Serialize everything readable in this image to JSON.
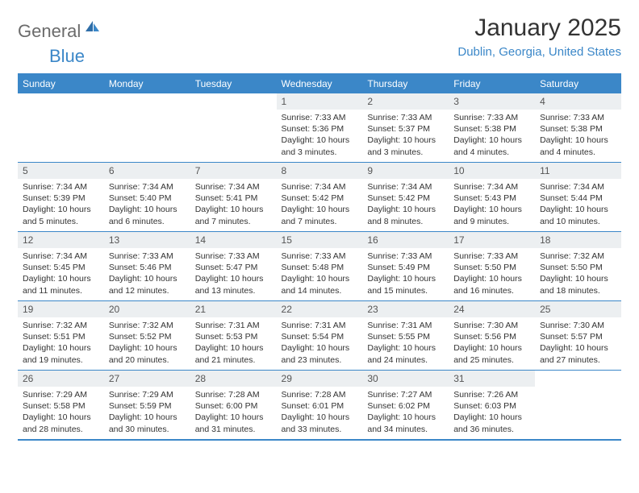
{
  "logo": {
    "text_gray": "General",
    "text_blue": "Blue"
  },
  "title": "January 2025",
  "location": "Dublin, Georgia, United States",
  "colors": {
    "brand_blue": "#3b87c8",
    "header_gray": "#6b6b6b",
    "cell_head_bg": "#eceff1",
    "text": "#333333",
    "bg": "#ffffff"
  },
  "day_headers": [
    "Sunday",
    "Monday",
    "Tuesday",
    "Wednesday",
    "Thursday",
    "Friday",
    "Saturday"
  ],
  "weeks": [
    [
      {
        "n": "",
        "sr": "",
        "ss": "",
        "dl": ""
      },
      {
        "n": "",
        "sr": "",
        "ss": "",
        "dl": ""
      },
      {
        "n": "",
        "sr": "",
        "ss": "",
        "dl": ""
      },
      {
        "n": "1",
        "sr": "Sunrise: 7:33 AM",
        "ss": "Sunset: 5:36 PM",
        "dl": "Daylight: 10 hours and 3 minutes."
      },
      {
        "n": "2",
        "sr": "Sunrise: 7:33 AM",
        "ss": "Sunset: 5:37 PM",
        "dl": "Daylight: 10 hours and 3 minutes."
      },
      {
        "n": "3",
        "sr": "Sunrise: 7:33 AM",
        "ss": "Sunset: 5:38 PM",
        "dl": "Daylight: 10 hours and 4 minutes."
      },
      {
        "n": "4",
        "sr": "Sunrise: 7:33 AM",
        "ss": "Sunset: 5:38 PM",
        "dl": "Daylight: 10 hours and 4 minutes."
      }
    ],
    [
      {
        "n": "5",
        "sr": "Sunrise: 7:34 AM",
        "ss": "Sunset: 5:39 PM",
        "dl": "Daylight: 10 hours and 5 minutes."
      },
      {
        "n": "6",
        "sr": "Sunrise: 7:34 AM",
        "ss": "Sunset: 5:40 PM",
        "dl": "Daylight: 10 hours and 6 minutes."
      },
      {
        "n": "7",
        "sr": "Sunrise: 7:34 AM",
        "ss": "Sunset: 5:41 PM",
        "dl": "Daylight: 10 hours and 7 minutes."
      },
      {
        "n": "8",
        "sr": "Sunrise: 7:34 AM",
        "ss": "Sunset: 5:42 PM",
        "dl": "Daylight: 10 hours and 7 minutes."
      },
      {
        "n": "9",
        "sr": "Sunrise: 7:34 AM",
        "ss": "Sunset: 5:42 PM",
        "dl": "Daylight: 10 hours and 8 minutes."
      },
      {
        "n": "10",
        "sr": "Sunrise: 7:34 AM",
        "ss": "Sunset: 5:43 PM",
        "dl": "Daylight: 10 hours and 9 minutes."
      },
      {
        "n": "11",
        "sr": "Sunrise: 7:34 AM",
        "ss": "Sunset: 5:44 PM",
        "dl": "Daylight: 10 hours and 10 minutes."
      }
    ],
    [
      {
        "n": "12",
        "sr": "Sunrise: 7:34 AM",
        "ss": "Sunset: 5:45 PM",
        "dl": "Daylight: 10 hours and 11 minutes."
      },
      {
        "n": "13",
        "sr": "Sunrise: 7:33 AM",
        "ss": "Sunset: 5:46 PM",
        "dl": "Daylight: 10 hours and 12 minutes."
      },
      {
        "n": "14",
        "sr": "Sunrise: 7:33 AM",
        "ss": "Sunset: 5:47 PM",
        "dl": "Daylight: 10 hours and 13 minutes."
      },
      {
        "n": "15",
        "sr": "Sunrise: 7:33 AM",
        "ss": "Sunset: 5:48 PM",
        "dl": "Daylight: 10 hours and 14 minutes."
      },
      {
        "n": "16",
        "sr": "Sunrise: 7:33 AM",
        "ss": "Sunset: 5:49 PM",
        "dl": "Daylight: 10 hours and 15 minutes."
      },
      {
        "n": "17",
        "sr": "Sunrise: 7:33 AM",
        "ss": "Sunset: 5:50 PM",
        "dl": "Daylight: 10 hours and 16 minutes."
      },
      {
        "n": "18",
        "sr": "Sunrise: 7:32 AM",
        "ss": "Sunset: 5:50 PM",
        "dl": "Daylight: 10 hours and 18 minutes."
      }
    ],
    [
      {
        "n": "19",
        "sr": "Sunrise: 7:32 AM",
        "ss": "Sunset: 5:51 PM",
        "dl": "Daylight: 10 hours and 19 minutes."
      },
      {
        "n": "20",
        "sr": "Sunrise: 7:32 AM",
        "ss": "Sunset: 5:52 PM",
        "dl": "Daylight: 10 hours and 20 minutes."
      },
      {
        "n": "21",
        "sr": "Sunrise: 7:31 AM",
        "ss": "Sunset: 5:53 PM",
        "dl": "Daylight: 10 hours and 21 minutes."
      },
      {
        "n": "22",
        "sr": "Sunrise: 7:31 AM",
        "ss": "Sunset: 5:54 PM",
        "dl": "Daylight: 10 hours and 23 minutes."
      },
      {
        "n": "23",
        "sr": "Sunrise: 7:31 AM",
        "ss": "Sunset: 5:55 PM",
        "dl": "Daylight: 10 hours and 24 minutes."
      },
      {
        "n": "24",
        "sr": "Sunrise: 7:30 AM",
        "ss": "Sunset: 5:56 PM",
        "dl": "Daylight: 10 hours and 25 minutes."
      },
      {
        "n": "25",
        "sr": "Sunrise: 7:30 AM",
        "ss": "Sunset: 5:57 PM",
        "dl": "Daylight: 10 hours and 27 minutes."
      }
    ],
    [
      {
        "n": "26",
        "sr": "Sunrise: 7:29 AM",
        "ss": "Sunset: 5:58 PM",
        "dl": "Daylight: 10 hours and 28 minutes."
      },
      {
        "n": "27",
        "sr": "Sunrise: 7:29 AM",
        "ss": "Sunset: 5:59 PM",
        "dl": "Daylight: 10 hours and 30 minutes."
      },
      {
        "n": "28",
        "sr": "Sunrise: 7:28 AM",
        "ss": "Sunset: 6:00 PM",
        "dl": "Daylight: 10 hours and 31 minutes."
      },
      {
        "n": "29",
        "sr": "Sunrise: 7:28 AM",
        "ss": "Sunset: 6:01 PM",
        "dl": "Daylight: 10 hours and 33 minutes."
      },
      {
        "n": "30",
        "sr": "Sunrise: 7:27 AM",
        "ss": "Sunset: 6:02 PM",
        "dl": "Daylight: 10 hours and 34 minutes."
      },
      {
        "n": "31",
        "sr": "Sunrise: 7:26 AM",
        "ss": "Sunset: 6:03 PM",
        "dl": "Daylight: 10 hours and 36 minutes."
      },
      {
        "n": "",
        "sr": "",
        "ss": "",
        "dl": ""
      }
    ]
  ]
}
